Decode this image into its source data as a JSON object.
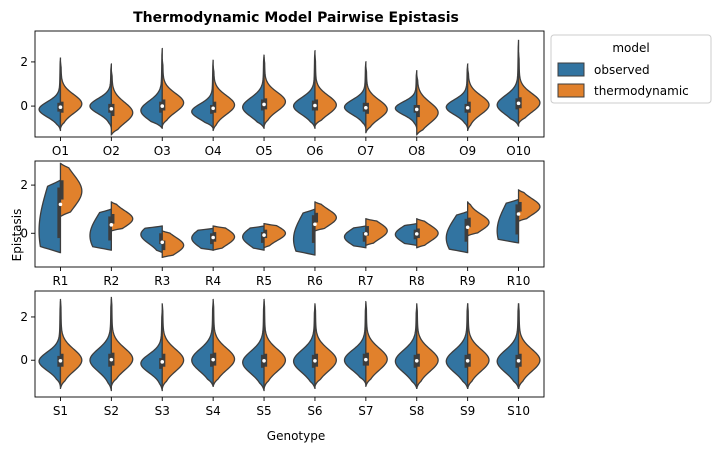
{
  "chart_data": {
    "type": "violin",
    "title": "Thermodynamic Model Pairwise Epistasis",
    "ylabel": "Epistasis",
    "xlabel": "Genotype",
    "legend": {
      "title": "model",
      "placement": "outside-right-top",
      "entries": [
        {
          "label": "observed",
          "color": "#3274a1"
        },
        {
          "label": "thermodynamic",
          "color": "#e1812c"
        }
      ]
    },
    "split": true,
    "panels": [
      {
        "ylim": [
          -1.4,
          3.4
        ],
        "yticks": [
          0,
          2
        ],
        "categories": [
          "O1",
          "O2",
          "O3",
          "O4",
          "O5",
          "O6",
          "O7",
          "O8",
          "O9",
          "O10"
        ],
        "series": [
          {
            "name": "observed",
            "violins": [
              {
                "median": -0.05,
                "q1": -0.25,
                "q3": 0.15,
                "min": -1.1,
                "max": 2.2,
                "peak": -0.15
              },
              {
                "median": -0.1,
                "q1": -0.3,
                "q3": 0.1,
                "min": -1.0,
                "max": 1.9,
                "peak": 0.0
              },
              {
                "median": -0.05,
                "q1": -0.3,
                "q3": 0.2,
                "min": -1.0,
                "max": 2.6,
                "peak": -0.2
              },
              {
                "median": -0.15,
                "q1": -0.35,
                "q3": 0.05,
                "min": -1.0,
                "max": 2.1,
                "peak": -0.25
              },
              {
                "median": 0.05,
                "q1": -0.2,
                "q3": 0.3,
                "min": -1.0,
                "max": 2.3,
                "peak": -0.05
              },
              {
                "median": 0.0,
                "q1": -0.2,
                "q3": 0.25,
                "min": -1.0,
                "max": 2.5,
                "peak": 0.0
              },
              {
                "median": -0.05,
                "q1": -0.25,
                "q3": 0.15,
                "min": -1.0,
                "max": 2.0,
                "peak": -0.05
              },
              {
                "median": -0.1,
                "q1": -0.3,
                "q3": 0.05,
                "min": -1.0,
                "max": 1.6,
                "peak": -0.1
              },
              {
                "median": -0.1,
                "q1": -0.3,
                "q3": 0.1,
                "min": -1.0,
                "max": 1.9,
                "peak": -0.05
              },
              {
                "median": 0.1,
                "q1": -0.15,
                "q3": 0.35,
                "min": -0.9,
                "max": 3.0,
                "peak": 0.05
              }
            ]
          },
          {
            "name": "thermodynamic",
            "violins": [
              {
                "median": -0.05,
                "q1": -0.3,
                "q3": 0.2,
                "min": -1.0,
                "max": 2.0,
                "peak": 0.1
              },
              {
                "median": -0.15,
                "q1": -0.45,
                "q3": 0.1,
                "min": -1.3,
                "max": 1.6,
                "peak": -0.3
              },
              {
                "median": 0.05,
                "q1": -0.2,
                "q3": 0.3,
                "min": -0.9,
                "max": 2.1,
                "peak": 0.15
              },
              {
                "median": -0.05,
                "q1": -0.3,
                "q3": 0.2,
                "min": -1.1,
                "max": 1.8,
                "peak": 0.05
              },
              {
                "median": 0.1,
                "q1": -0.15,
                "q3": 0.35,
                "min": -0.9,
                "max": 2.2,
                "peak": 0.2
              },
              {
                "median": 0.05,
                "q1": -0.2,
                "q3": 0.3,
                "min": -0.9,
                "max": 2.3,
                "peak": 0.05
              },
              {
                "median": -0.1,
                "q1": -0.35,
                "q3": 0.15,
                "min": -1.2,
                "max": 1.8,
                "peak": -0.15
              },
              {
                "median": -0.2,
                "q1": -0.5,
                "q3": 0.05,
                "min": -1.3,
                "max": 1.4,
                "peak": -0.3
              },
              {
                "median": -0.05,
                "q1": -0.3,
                "q3": 0.2,
                "min": -1.1,
                "max": 1.7,
                "peak": 0.05
              },
              {
                "median": 0.15,
                "q1": -0.1,
                "q3": 0.4,
                "min": -0.8,
                "max": 2.4,
                "peak": 0.15
              }
            ]
          }
        ]
      },
      {
        "ylim": [
          -1.4,
          3.0
        ],
        "yticks": [
          0,
          2
        ],
        "categories": [
          "R1",
          "R2",
          "R3",
          "R4",
          "R5",
          "R6",
          "R7",
          "R8",
          "R9",
          "R10"
        ],
        "series": [
          {
            "name": "observed",
            "violins": [
              {
                "median": 0.6,
                "q1": -0.2,
                "q3": 1.9,
                "min": -0.8,
                "max": 2.2,
                "peak": 0.1
              },
              {
                "median": 0.1,
                "q1": -0.3,
                "q3": 0.7,
                "min": -0.7,
                "max": 1.0,
                "peak": -0.1
              },
              {
                "median": -0.25,
                "q1": -0.45,
                "q3": 0.0,
                "min": -0.8,
                "max": 0.3,
                "peak": -0.05
              },
              {
                "median": -0.2,
                "q1": -0.45,
                "q3": 0.0,
                "min": -0.7,
                "max": 0.2,
                "peak": -0.2
              },
              {
                "median": -0.15,
                "q1": -0.4,
                "q3": 0.05,
                "min": -0.7,
                "max": 0.3,
                "peak": -0.15
              },
              {
                "median": 0.1,
                "q1": -0.4,
                "q3": 0.75,
                "min": -0.9,
                "max": 1.0,
                "peak": -0.25
              },
              {
                "median": -0.15,
                "q1": -0.35,
                "q3": 0.05,
                "min": -0.6,
                "max": 0.3,
                "peak": -0.15
              },
              {
                "median": -0.05,
                "q1": -0.25,
                "q3": 0.15,
                "min": -0.5,
                "max": 0.4,
                "peak": -0.05
              },
              {
                "median": 0.05,
                "q1": -0.35,
                "q3": 0.6,
                "min": -0.8,
                "max": 0.9,
                "peak": -0.2
              },
              {
                "median": 0.5,
                "q1": -0.05,
                "q3": 1.2,
                "min": -0.4,
                "max": 1.4,
                "peak": 0.1
              }
            ]
          },
          {
            "name": "thermodynamic",
            "violins": [
              {
                "median": 1.8,
                "q1": 1.4,
                "q3": 2.2,
                "min": 0.7,
                "max": 2.9,
                "peak": 1.75
              },
              {
                "median": 0.6,
                "q1": 0.4,
                "q3": 0.8,
                "min": 0.1,
                "max": 1.3,
                "peak": 0.6
              },
              {
                "median": -0.5,
                "q1": -0.7,
                "q3": -0.3,
                "min": -1.0,
                "max": 0.1,
                "peak": -0.5
              },
              {
                "median": -0.15,
                "q1": -0.35,
                "q3": 0.05,
                "min": -0.7,
                "max": 0.3,
                "peak": -0.15
              },
              {
                "median": 0.0,
                "q1": -0.2,
                "q3": 0.15,
                "min": -0.6,
                "max": 0.4,
                "peak": 0.0
              },
              {
                "median": 0.65,
                "q1": 0.45,
                "q3": 0.85,
                "min": 0.1,
                "max": 1.3,
                "peak": 0.65
              },
              {
                "median": 0.1,
                "q1": -0.1,
                "q3": 0.3,
                "min": -0.5,
                "max": 0.6,
                "peak": 0.1
              },
              {
                "median": 0.0,
                "q1": -0.2,
                "q3": 0.2,
                "min": -0.6,
                "max": 0.6,
                "peak": 0.0
              },
              {
                "median": 0.45,
                "q1": 0.25,
                "q3": 0.65,
                "min": -0.1,
                "max": 1.3,
                "peak": 0.45
              },
              {
                "median": 1.1,
                "q1": 0.9,
                "q3": 1.3,
                "min": 0.5,
                "max": 1.8,
                "peak": 1.1
              }
            ]
          }
        ]
      },
      {
        "ylim": [
          -1.7,
          3.2
        ],
        "yticks": [
          0,
          2
        ],
        "categories": [
          "S1",
          "S2",
          "S3",
          "S4",
          "S5",
          "S6",
          "S7",
          "S8",
          "S9",
          "S10"
        ],
        "series": [
          {
            "name": "observed",
            "violins": [
              {
                "median": -0.05,
                "q1": -0.3,
                "q3": 0.2,
                "min": -1.2,
                "max": 2.7,
                "peak": -0.05
              },
              {
                "median": 0.0,
                "q1": -0.3,
                "q3": 0.3,
                "min": -1.4,
                "max": 2.8,
                "peak": 0.0
              },
              {
                "median": -0.15,
                "q1": -0.4,
                "q3": 0.1,
                "min": -1.4,
                "max": 2.3,
                "peak": -0.15
              },
              {
                "median": 0.0,
                "q1": -0.3,
                "q3": 0.3,
                "min": -1.2,
                "max": 2.7,
                "peak": 0.0
              },
              {
                "median": -0.05,
                "q1": -0.35,
                "q3": 0.25,
                "min": -1.4,
                "max": 2.7,
                "peak": -0.1
              },
              {
                "median": -0.05,
                "q1": -0.35,
                "q3": 0.25,
                "min": -1.3,
                "max": 2.5,
                "peak": -0.05
              },
              {
                "median": 0.0,
                "q1": -0.25,
                "q3": 0.3,
                "min": -1.1,
                "max": 2.6,
                "peak": 0.0
              },
              {
                "median": -0.05,
                "q1": -0.35,
                "q3": 0.25,
                "min": -1.3,
                "max": 2.5,
                "peak": -0.05
              },
              {
                "median": -0.05,
                "q1": -0.35,
                "q3": 0.25,
                "min": -1.3,
                "max": 2.6,
                "peak": -0.05
              },
              {
                "median": -0.05,
                "q1": -0.35,
                "q3": 0.25,
                "min": -1.3,
                "max": 2.6,
                "peak": -0.05
              }
            ]
          },
          {
            "name": "thermodynamic",
            "violins": [
              {
                "median": 0.0,
                "q1": -0.3,
                "q3": 0.3,
                "min": -1.3,
                "max": 2.8,
                "peak": 0.0
              },
              {
                "median": 0.05,
                "q1": -0.25,
                "q3": 0.35,
                "min": -1.2,
                "max": 2.9,
                "peak": 0.05
              },
              {
                "median": 0.0,
                "q1": -0.3,
                "q3": 0.3,
                "min": -1.3,
                "max": 2.6,
                "peak": 0.0
              },
              {
                "median": 0.05,
                "q1": -0.25,
                "q3": 0.35,
                "min": -1.2,
                "max": 2.8,
                "peak": 0.05
              },
              {
                "median": 0.0,
                "q1": -0.3,
                "q3": 0.3,
                "min": -1.3,
                "max": 2.8,
                "peak": 0.0
              },
              {
                "median": 0.0,
                "q1": -0.3,
                "q3": 0.3,
                "min": -1.2,
                "max": 2.6,
                "peak": 0.0
              },
              {
                "median": 0.05,
                "q1": -0.25,
                "q3": 0.35,
                "min": -1.2,
                "max": 2.7,
                "peak": 0.05
              },
              {
                "median": 0.0,
                "q1": -0.3,
                "q3": 0.3,
                "min": -1.3,
                "max": 2.6,
                "peak": 0.0
              },
              {
                "median": 0.0,
                "q1": -0.3,
                "q3": 0.3,
                "min": -1.3,
                "max": 2.6,
                "peak": 0.0
              },
              {
                "median": 0.0,
                "q1": -0.3,
                "q3": 0.3,
                "min": -1.3,
                "max": 2.6,
                "peak": 0.0
              }
            ]
          }
        ]
      }
    ]
  }
}
